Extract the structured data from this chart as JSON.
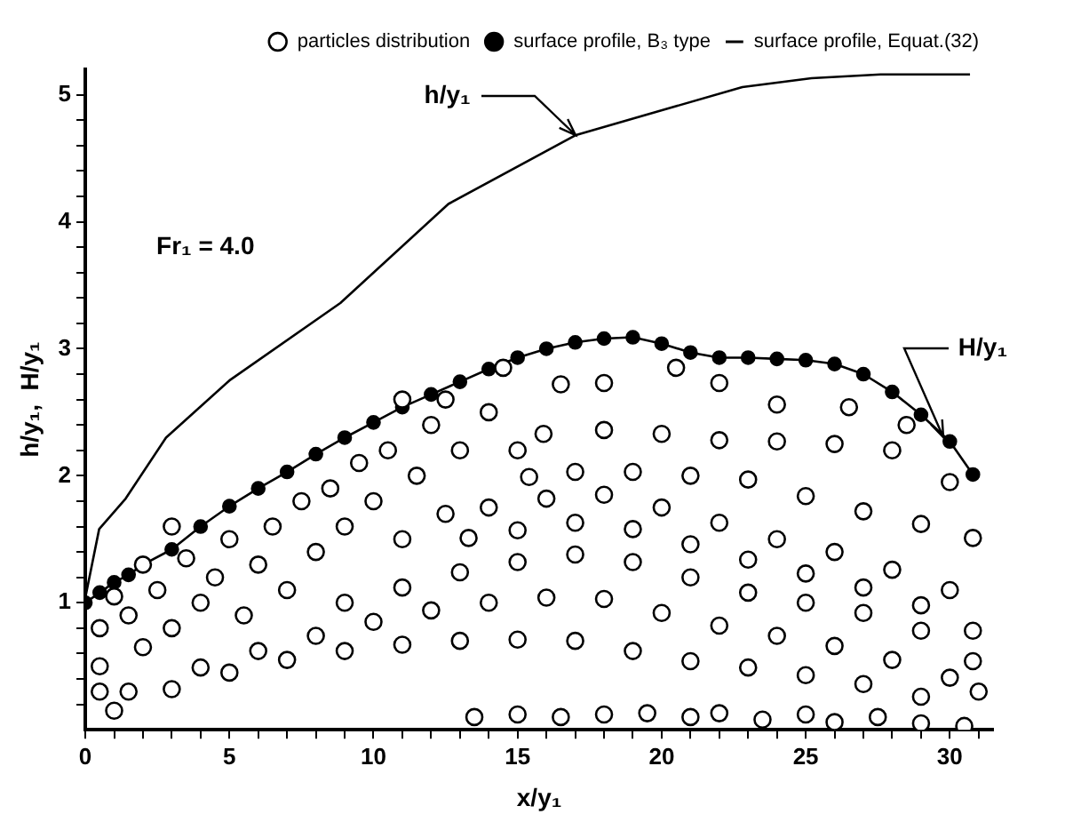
{
  "chart_data": {
    "type": "scatter",
    "xlabel": "x/y₁",
    "ylabel": "h/y₁,  H/y₁",
    "xlim": [
      0,
      31.5
    ],
    "xticks": [
      0,
      {
        "value": 1,
        "label": null
      },
      {
        "value": 2,
        "label": null
      },
      {
        "value": 3,
        "label": null
      },
      {
        "value": 4,
        "label": null
      },
      5,
      {
        "value": 6,
        "label": null
      },
      {
        "value": 7,
        "label": null
      },
      {
        "value": 8,
        "label": null
      },
      {
        "value": 9,
        "label": null
      },
      10,
      {
        "value": 11,
        "label": null
      },
      {
        "value": 12,
        "label": null
      },
      {
        "value": 13,
        "label": null
      },
      {
        "value": 14,
        "label": null
      },
      15,
      {
        "value": 16,
        "label": null
      },
      {
        "value": 17,
        "label": null
      },
      {
        "value": 18,
        "label": null
      },
      {
        "value": 19,
        "label": null
      },
      20,
      {
        "value": 21,
        "label": null
      },
      {
        "value": 22,
        "label": null
      },
      {
        "value": 23,
        "label": null
      },
      {
        "value": 24,
        "label": null
      },
      25,
      {
        "value": 26,
        "label": null
      },
      {
        "value": 27,
        "label": null
      },
      {
        "value": 28,
        "label": null
      },
      {
        "value": 29,
        "label": null
      },
      30,
      {
        "value": 31,
        "label": null
      }
    ],
    "ylim": [
      0,
      5.2
    ],
    "yticks": [
      {
        "value": 0.2,
        "label": null
      },
      {
        "value": 0.4,
        "label": null
      },
      {
        "value": 0.6,
        "label": null
      },
      {
        "value": 0.8,
        "label": null
      },
      1,
      {
        "value": 1.2,
        "label": null
      },
      {
        "value": 1.4,
        "label": null
      },
      {
        "value": 1.6,
        "label": null
      },
      {
        "value": 1.8,
        "label": null
      },
      2,
      {
        "value": 2.2,
        "label": null
      },
      {
        "value": 2.4,
        "label": null
      },
      {
        "value": 2.6,
        "label": null
      },
      {
        "value": 2.8,
        "label": null
      },
      3,
      {
        "value": 3.2,
        "label": null
      },
      {
        "value": 3.4,
        "label": null
      },
      {
        "value": 3.6,
        "label": null
      },
      {
        "value": 3.8,
        "label": null
      },
      4,
      {
        "value": 4.2,
        "label": null
      },
      {
        "value": 4.4,
        "label": null
      },
      {
        "value": 4.6,
        "label": null
      },
      {
        "value": 4.8,
        "label": null
      },
      5
    ],
    "grid": false,
    "legend": "top right",
    "annotations": [
      "Fr₁ = 4.0",
      {
        "text": "h/y₁",
        "x": 17,
        "y": 4.68
      },
      {
        "text": "H/y₁",
        "x": 29.8,
        "y": 2.3
      }
    ],
    "series": [
      {
        "name": "particles distribution",
        "marker": "circle",
        "color": "#000000",
        "x": [
          1,
          3,
          5,
          7,
          9,
          11,
          13,
          15,
          17,
          19,
          21,
          23,
          25,
          27,
          29,
          4,
          6,
          8,
          10,
          12,
          14,
          16,
          18,
          20,
          22,
          24,
          26,
          28,
          30,
          31,
          9,
          11,
          13,
          15,
          17,
          19,
          21,
          23,
          25,
          27,
          29,
          30.8,
          13.3,
          15,
          17,
          19,
          21,
          23,
          25,
          27,
          29,
          30.8,
          14,
          16,
          18,
          20,
          22,
          24,
          26,
          28,
          30,
          15.4,
          17,
          19,
          21,
          23,
          25,
          27,
          29,
          30.8,
          15.9,
          18,
          20,
          22,
          24,
          26,
          28,
          30,
          16.5,
          18,
          20.5,
          22,
          24,
          26.5,
          28.5,
          0.5,
          0.5,
          1,
          1.5,
          2,
          2.5,
          3,
          3.5,
          4,
          4.5,
          5,
          5.5,
          6,
          6.5,
          7,
          7.5,
          8,
          8.5,
          9,
          9.5,
          10,
          10.5,
          11,
          11.5,
          12,
          12.5,
          13,
          14,
          11,
          12.5,
          14.5,
          15,
          3,
          2,
          0.5,
          1.5,
          13.5,
          15,
          16.5,
          18,
          19.5,
          21,
          22,
          23.5,
          25,
          26,
          27.5,
          29,
          30.5
        ],
        "values": [
          0.15,
          0.32,
          0.45,
          0.55,
          0.62,
          0.67,
          0.7,
          0.71,
          0.7,
          0.62,
          0.54,
          0.49,
          0.43,
          0.36,
          0.26,
          0.49,
          0.62,
          0.74,
          0.85,
          0.94,
          1.0,
          1.04,
          1.03,
          0.92,
          0.82,
          0.74,
          0.66,
          0.55,
          0.41,
          0.3,
          1.0,
          1.12,
          1.24,
          1.32,
          1.38,
          1.32,
          1.2,
          1.08,
          1.0,
          0.92,
          0.78,
          0.54,
          1.51,
          1.57,
          1.63,
          1.58,
          1.46,
          1.34,
          1.23,
          1.12,
          0.98,
          0.78,
          1.75,
          1.82,
          1.85,
          1.75,
          1.63,
          1.5,
          1.4,
          1.26,
          1.1,
          1.99,
          2.03,
          2.03,
          2.0,
          1.97,
          1.84,
          1.72,
          1.62,
          1.51,
          2.33,
          2.36,
          2.33,
          2.28,
          2.27,
          2.25,
          2.2,
          1.95,
          2.72,
          2.73,
          2.85,
          2.73,
          2.56,
          2.54,
          2.4,
          0.5,
          0.8,
          1.05,
          0.9,
          0.65,
          1.1,
          0.8,
          1.35,
          1.0,
          1.2,
          1.5,
          0.9,
          1.3,
          1.6,
          1.1,
          1.8,
          1.4,
          1.9,
          1.6,
          2.1,
          1.8,
          2.2,
          1.5,
          2.0,
          2.4,
          1.7,
          2.2,
          2.5,
          2.6,
          2.6,
          2.85,
          2.2,
          1.6,
          1.3,
          0.3,
          0.3,
          0.1,
          0.12,
          0.1,
          0.12,
          0.13,
          0.1,
          0.13,
          0.08,
          0.12,
          0.06,
          0.1,
          0.05,
          0.03
        ]
      },
      {
        "name": "surface profile, B₃ type",
        "type": "line",
        "marker": "circle",
        "line_style": "solid",
        "color": "#000000",
        "x": [
          0,
          0.5,
          1,
          1.5,
          2,
          3,
          4,
          5,
          6,
          7,
          8,
          9,
          10,
          11,
          12,
          13,
          14,
          15,
          16,
          17,
          18,
          19,
          20,
          21,
          22,
          23,
          24,
          25,
          26,
          27,
          28,
          29,
          30,
          30.8
        ],
        "values": [
          1.0,
          1.08,
          1.16,
          1.22,
          1.3,
          1.42,
          1.6,
          1.76,
          1.9,
          2.03,
          2.17,
          2.3,
          2.42,
          2.54,
          2.64,
          2.74,
          2.84,
          2.93,
          3.0,
          3.05,
          3.08,
          3.09,
          3.04,
          2.97,
          2.93,
          2.93,
          2.92,
          2.91,
          2.88,
          2.8,
          2.66,
          2.48,
          2.27,
          2.01
        ]
      },
      {
        "name": "surface profile, Equat.(32)",
        "type": "line",
        "marker": "none",
        "line_style": "solid",
        "color": "#000000",
        "x": [
          0,
          0.48,
          1.4,
          2.8,
          5,
          8.85,
          12.6,
          17,
          20.2,
          22.8,
          25.2,
          27.6,
          30.7
        ],
        "values": [
          1.04,
          1.58,
          1.82,
          2.3,
          2.75,
          3.36,
          4.14,
          4.68,
          4.89,
          5.06,
          5.13,
          5.16,
          5.16
        ]
      }
    ]
  }
}
